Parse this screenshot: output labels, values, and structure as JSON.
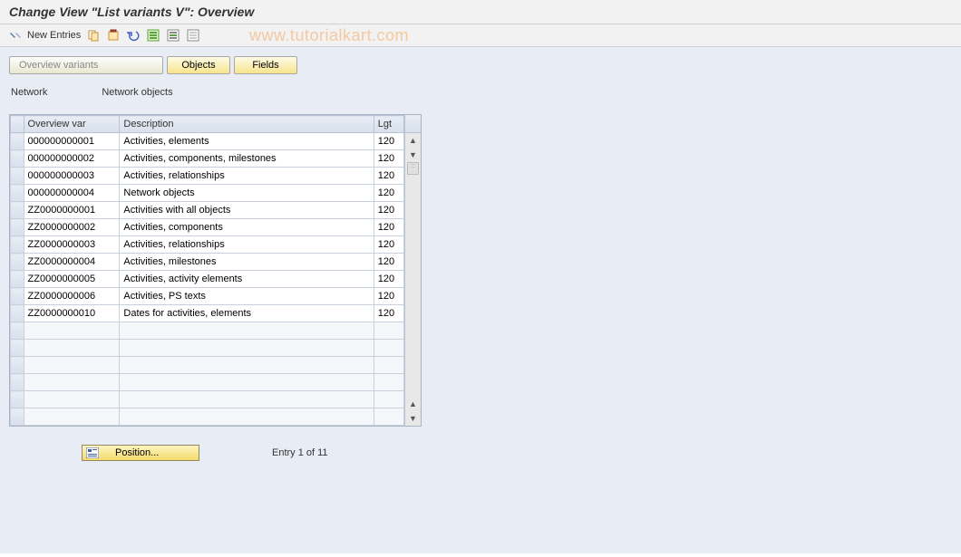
{
  "title": "Change View \"List variants                      V\": Overview",
  "watermark": "www.tutorialkart.com",
  "toolbar": {
    "new_entries_label": "New Entries"
  },
  "tabs": {
    "overview_variants": "Overview variants",
    "objects": "Objects",
    "fields": "Fields"
  },
  "labels": {
    "network": "Network",
    "network_objects": "Network objects"
  },
  "table": {
    "columns": {
      "overview_var": "Overview var",
      "description": "Description",
      "lgt": "Lgt"
    },
    "rows": [
      {
        "var": "000000000001",
        "desc": "Activities, elements",
        "lgt": "120"
      },
      {
        "var": "000000000002",
        "desc": "Activities, components, milestones",
        "lgt": "120"
      },
      {
        "var": "000000000003",
        "desc": "Activities, relationships",
        "lgt": "120"
      },
      {
        "var": "000000000004",
        "desc": "Network objects",
        "lgt": "120"
      },
      {
        "var": "ZZ0000000001",
        "desc": "Activities with all objects",
        "lgt": "120"
      },
      {
        "var": "ZZ0000000002",
        "desc": "Activities, components",
        "lgt": "120"
      },
      {
        "var": "ZZ0000000003",
        "desc": "Activities, relationships",
        "lgt": "120"
      },
      {
        "var": "ZZ0000000004",
        "desc": "Activities, milestones",
        "lgt": "120"
      },
      {
        "var": "ZZ0000000005",
        "desc": "Activities, activity elements",
        "lgt": "120"
      },
      {
        "var": "ZZ0000000006",
        "desc": "Activities, PS texts",
        "lgt": "120"
      },
      {
        "var": "ZZ0000000010",
        "desc": "Dates for activities, elements",
        "lgt": "120"
      }
    ],
    "empty_rows": 6
  },
  "footer": {
    "position_label": "Position...",
    "entry_text": "Entry 1 of 11"
  },
  "colors": {
    "content_bg": "#e8edf5",
    "btn_gradient_top": "#fefce8",
    "btn_gradient_bottom": "#f8e48b",
    "header_gradient_top": "#e8edf5",
    "header_gradient_bottom": "#d8e0ec",
    "watermark": "#f5c8a0"
  }
}
